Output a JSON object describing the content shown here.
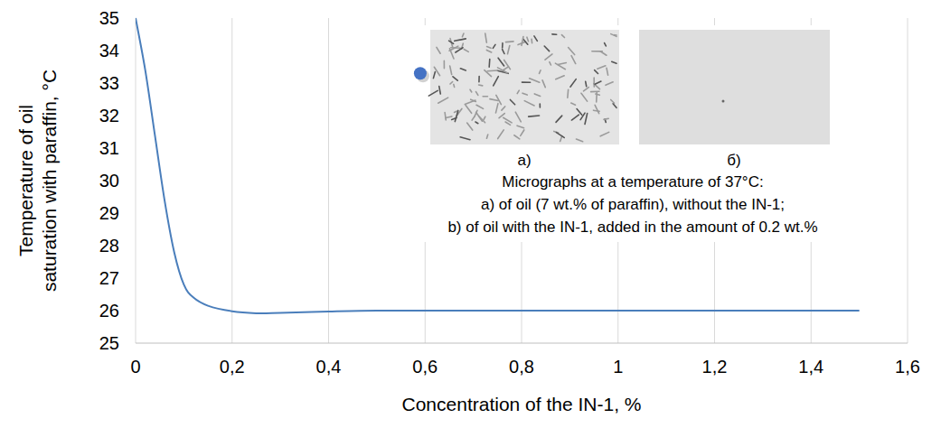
{
  "chart_data": {
    "type": "line",
    "x_label": "Concentration of the IN-1, %",
    "y_label": "Temperature of oil saturation with paraffin, °C",
    "xlim": [
      0,
      1.6
    ],
    "ylim": [
      25,
      35
    ],
    "xticks": [
      0,
      {
        "value": 0.2,
        "label": "0,2"
      },
      {
        "value": 0.4,
        "label": "0,4"
      },
      {
        "value": 0.6,
        "label": "0,6"
      },
      {
        "value": 0.8,
        "label": "0,8"
      },
      1,
      {
        "value": 1.2,
        "label": "1,2"
      },
      {
        "value": 1.4,
        "label": "1,4"
      },
      {
        "value": 1.6,
        "label": "1,6"
      }
    ],
    "yticks": [
      25,
      26,
      27,
      28,
      29,
      30,
      31,
      32,
      33,
      34,
      35
    ],
    "grid": "x",
    "series": [
      {
        "type": "line",
        "color": "#4a7ebb",
        "line_style": "smooth",
        "x": [
          0,
          0.02,
          0.04,
          0.06,
          0.08,
          0.1,
          0.12,
          0.15,
          0.2,
          0.25,
          0.3,
          0.4,
          0.5,
          0.6,
          0.8,
          1,
          1.2,
          1.5
        ],
        "values": [
          35,
          33.4,
          31.4,
          29.4,
          27.8,
          26.8,
          26.4,
          26.15,
          25.98,
          25.92,
          25.93,
          25.97,
          26,
          26,
          26,
          26,
          26,
          26
        ]
      },
      {
        "type": "scatter",
        "color": "#4472c4",
        "marker": "circle",
        "x": [
          0.59
        ],
        "values": [
          33.3
        ]
      }
    ],
    "annotations": [
      "a)",
      "б)",
      "Micrographs at a temperature of 37°C:",
      "a) of oil (7 wt.% of paraffin), without the IN-1;",
      "b) of oil with the IN-1, added in the amount of 0.2 wt.%"
    ]
  }
}
